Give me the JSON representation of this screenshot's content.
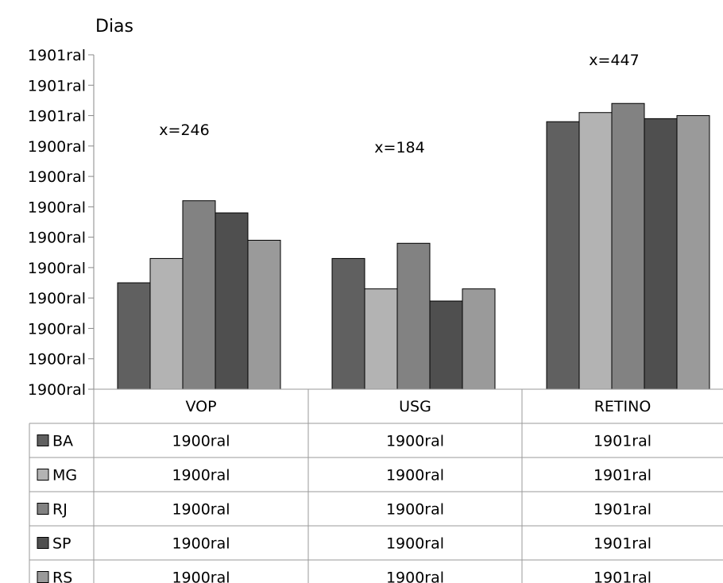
{
  "chart_data": {
    "type": "bar",
    "ylabel": "Dias",
    "y_ticks": [
      "1900ral",
      "1900ral",
      "1900ral",
      "1900ral",
      "1900ral",
      "1900ral",
      "1900ral",
      "1900ral",
      "1900ral",
      "1901ral",
      "1901ral",
      "1901ral"
    ],
    "ylim": [
      0,
      11
    ],
    "categories": [
      "VOP",
      "USG",
      "RETINO"
    ],
    "annotations": [
      "x=246",
      "x=184",
      "x=447"
    ],
    "series": [
      {
        "name": "BA",
        "color": "#606060",
        "values": [
          3.5,
          4.3,
          8.8
        ],
        "table": [
          "1900ral",
          "1900ral",
          "1901ral"
        ]
      },
      {
        "name": "MG",
        "color": "#b3b3b3",
        "values": [
          4.3,
          3.3,
          9.1
        ],
        "table": [
          "1900ral",
          "1900ral",
          "1901ral"
        ]
      },
      {
        "name": "RJ",
        "color": "#828282",
        "values": [
          6.2,
          4.8,
          9.4
        ],
        "table": [
          "1900ral",
          "1900ral",
          "1901ral"
        ]
      },
      {
        "name": "SP",
        "color": "#4f4f4f",
        "values": [
          5.8,
          2.9,
          8.9
        ],
        "table": [
          "1900ral",
          "1900ral",
          "1901ral"
        ]
      },
      {
        "name": "RS",
        "color": "#9a9a9a",
        "values": [
          4.9,
          3.3,
          9.0
        ],
        "table": [
          "1900ral",
          "1900ral",
          "1901ral"
        ]
      }
    ],
    "grid": false,
    "legend": "data-table-rows"
  }
}
